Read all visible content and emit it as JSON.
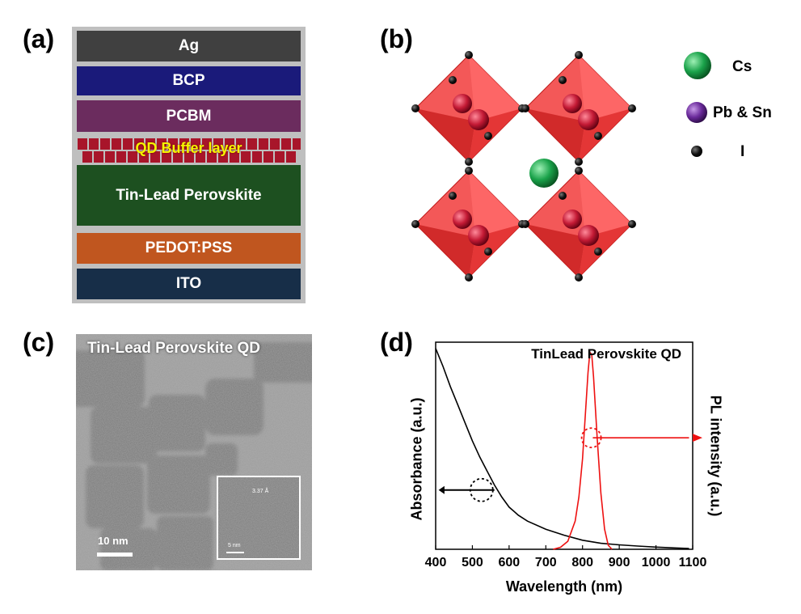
{
  "panel_labels": {
    "a": "(a)",
    "b": "(b)",
    "c": "(c)",
    "d": "(d)"
  },
  "panel_a": {
    "layers": [
      {
        "name": "Ag",
        "color": "#404040"
      },
      {
        "name": "BCP",
        "color": "#1a1a7a"
      },
      {
        "name": "PCBM",
        "color": "#6b2c5e"
      },
      {
        "name": "QD Buffer layer",
        "color": "#a8152a"
      },
      {
        "name": "Tin-Lead Perovskite",
        "color": "#1d5020"
      },
      {
        "name": "PEDOT:PSS",
        "color": "#c0561f"
      },
      {
        "name": "ITO",
        "color": "#172e48"
      }
    ]
  },
  "panel_b": {
    "legend": [
      {
        "label": "Cs",
        "color": "#1aa24a",
        "icon": "green-sphere-icon"
      },
      {
        "label": "Pb & Sn",
        "color": "#6a2a9a",
        "icon": "purple-sphere-icon"
      },
      {
        "label": "I",
        "color": "#000000",
        "icon": "black-sphere-icon"
      }
    ]
  },
  "panel_c": {
    "title": "Tin-Lead Perovskite QD",
    "scale_bar": "10 nm",
    "inset_scale_bar": "5 nm",
    "inset_lattice": "3.37 Å"
  },
  "chart_data": {
    "type": "line",
    "title": "TinLead Perovskite QD",
    "xlabel": "Wavelength (nm)",
    "ylabel_left": "Absorbance (a.u.)",
    "ylabel_right": "PL intensity (a.u.)",
    "xlim": [
      400,
      1100
    ],
    "ylim": [
      0,
      1
    ],
    "xticks": [
      400,
      500,
      600,
      700,
      800,
      900,
      1000,
      1100
    ],
    "series": [
      {
        "name": "Absorbance",
        "axis": "left",
        "color": "#000000",
        "x": [
          400,
          420,
          440,
          460,
          480,
          500,
          520,
          540,
          560,
          580,
          600,
          625,
          650,
          700,
          750,
          800,
          850,
          900,
          950,
          1000,
          1050,
          1090
        ],
        "y": [
          1.0,
          0.91,
          0.81,
          0.72,
          0.63,
          0.54,
          0.46,
          0.39,
          0.32,
          0.26,
          0.21,
          0.17,
          0.14,
          0.1,
          0.07,
          0.045,
          0.03,
          0.022,
          0.016,
          0.011,
          0.007,
          0.004
        ]
      },
      {
        "name": "PL",
        "axis": "right",
        "color": "#ee1111",
        "x": [
          720,
          740,
          760,
          780,
          790,
          800,
          810,
          815,
          820,
          825,
          830,
          840,
          850,
          860,
          870,
          880
        ],
        "y": [
          0.0,
          0.01,
          0.04,
          0.14,
          0.26,
          0.45,
          0.74,
          0.88,
          0.98,
          0.97,
          0.86,
          0.55,
          0.28,
          0.1,
          0.02,
          0.0
        ]
      }
    ]
  }
}
